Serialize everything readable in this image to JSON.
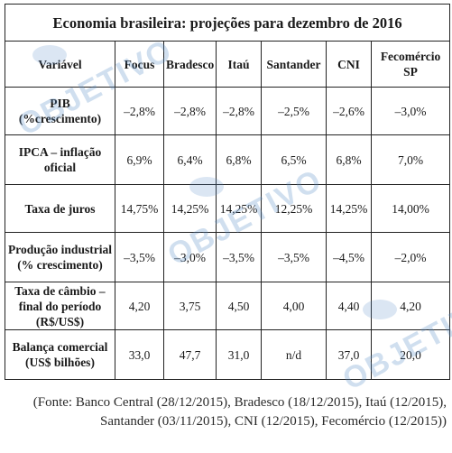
{
  "table": {
    "title": "Economia brasileira: projeções para dezembro de 2016",
    "headers": [
      "Variável",
      "Focus",
      "Bradesco",
      "Itaú",
      "Santander",
      "CNI",
      "Fecomércio SP"
    ],
    "rows": [
      {
        "label": "PIB (%crescimento)",
        "values": [
          "–2,8%",
          "–2,8%",
          "–2,8%",
          "–2,5%",
          "–2,6%",
          "–3,0%"
        ]
      },
      {
        "label": "IPCA – inflação oficial",
        "values": [
          "6,9%",
          "6,4%",
          "6,8%",
          "6,5%",
          "6,8%",
          "7,0%"
        ]
      },
      {
        "label": "Taxa de juros",
        "values": [
          "14,75%",
          "14,25%",
          "14,25%",
          "12,25%",
          "14,25%",
          "14,00%"
        ]
      },
      {
        "label": "Produção industrial (% crescimento)",
        "values": [
          "–3,5%",
          "–3,0%",
          "–3,5%",
          "–3,5%",
          "–4,5%",
          "–2,0%"
        ]
      },
      {
        "label": "Taxa de câmbio – final do período (R$/US$)",
        "values": [
          "4,20",
          "3,75",
          "4,50",
          "4,00",
          "4,40",
          "4,20"
        ]
      },
      {
        "label": "Balança comercial (US$ bilhões)",
        "values": [
          "33,0",
          "47,7",
          "31,0",
          "n/d",
          "37,0",
          "20,0"
        ]
      }
    ]
  },
  "source_note": "(Fonte: Banco Central (28/12/2015), Bradesco (18/12/2015), Itaú (12/2015), Santander (03/11/2015), CNI (12/2015), Fecomércio (12/2015))",
  "watermark": {
    "text": "OBJETIVO",
    "color": "#5a8fc7"
  }
}
